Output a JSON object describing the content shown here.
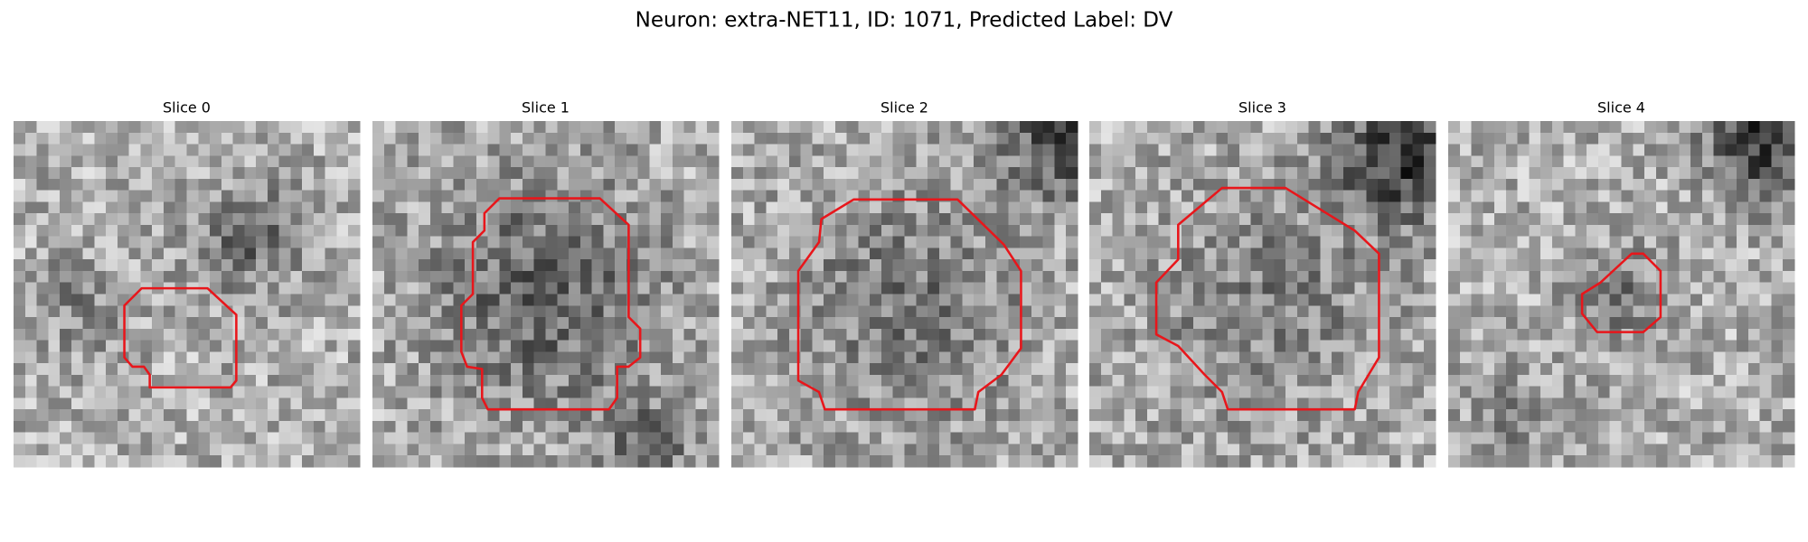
{
  "title": "Neuron: extra-NET11, ID: 1071, Predicted Label: DV",
  "panels": [
    {
      "title": "Slice 0"
    },
    {
      "title": "Slice 1"
    },
    {
      "title": "Slice 2"
    },
    {
      "title": "Slice 3"
    },
    {
      "title": "Slice 4"
    }
  ]
}
